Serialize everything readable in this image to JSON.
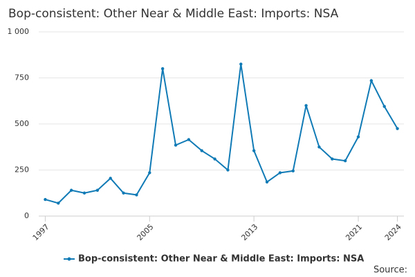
{
  "chart_data": {
    "type": "line",
    "title": "Bop-consistent: Other Near & Middle East: Imports: NSA",
    "x": [
      1997,
      1998,
      1999,
      2000,
      2001,
      2002,
      2003,
      2004,
      2005,
      2006,
      2007,
      2008,
      2009,
      2010,
      2011,
      2012,
      2013,
      2014,
      2015,
      2016,
      2017,
      2018,
      2019,
      2020,
      2021,
      2022,
      2023,
      2024
    ],
    "series": [
      {
        "name": "Bop-consistent: Other Near & Middle East: Imports: NSA",
        "color": "#0f7ab5",
        "values": [
          90,
          70,
          140,
          125,
          140,
          205,
          125,
          115,
          235,
          800,
          385,
          415,
          355,
          310,
          250,
          825,
          355,
          185,
          235,
          245,
          600,
          375,
          310,
          300,
          430,
          735,
          595,
          475
        ]
      }
    ],
    "xlim": [
      1996.5,
      2024.5
    ],
    "xticks": [
      1997,
      2005,
      2013,
      2021,
      2024
    ],
    "ylim": [
      0,
      1000
    ],
    "yticks": [
      0,
      250,
      500,
      750,
      {
        "value": 1000,
        "label": "1 000"
      }
    ],
    "grid": true,
    "legend": "bottom",
    "source": "Source:"
  }
}
